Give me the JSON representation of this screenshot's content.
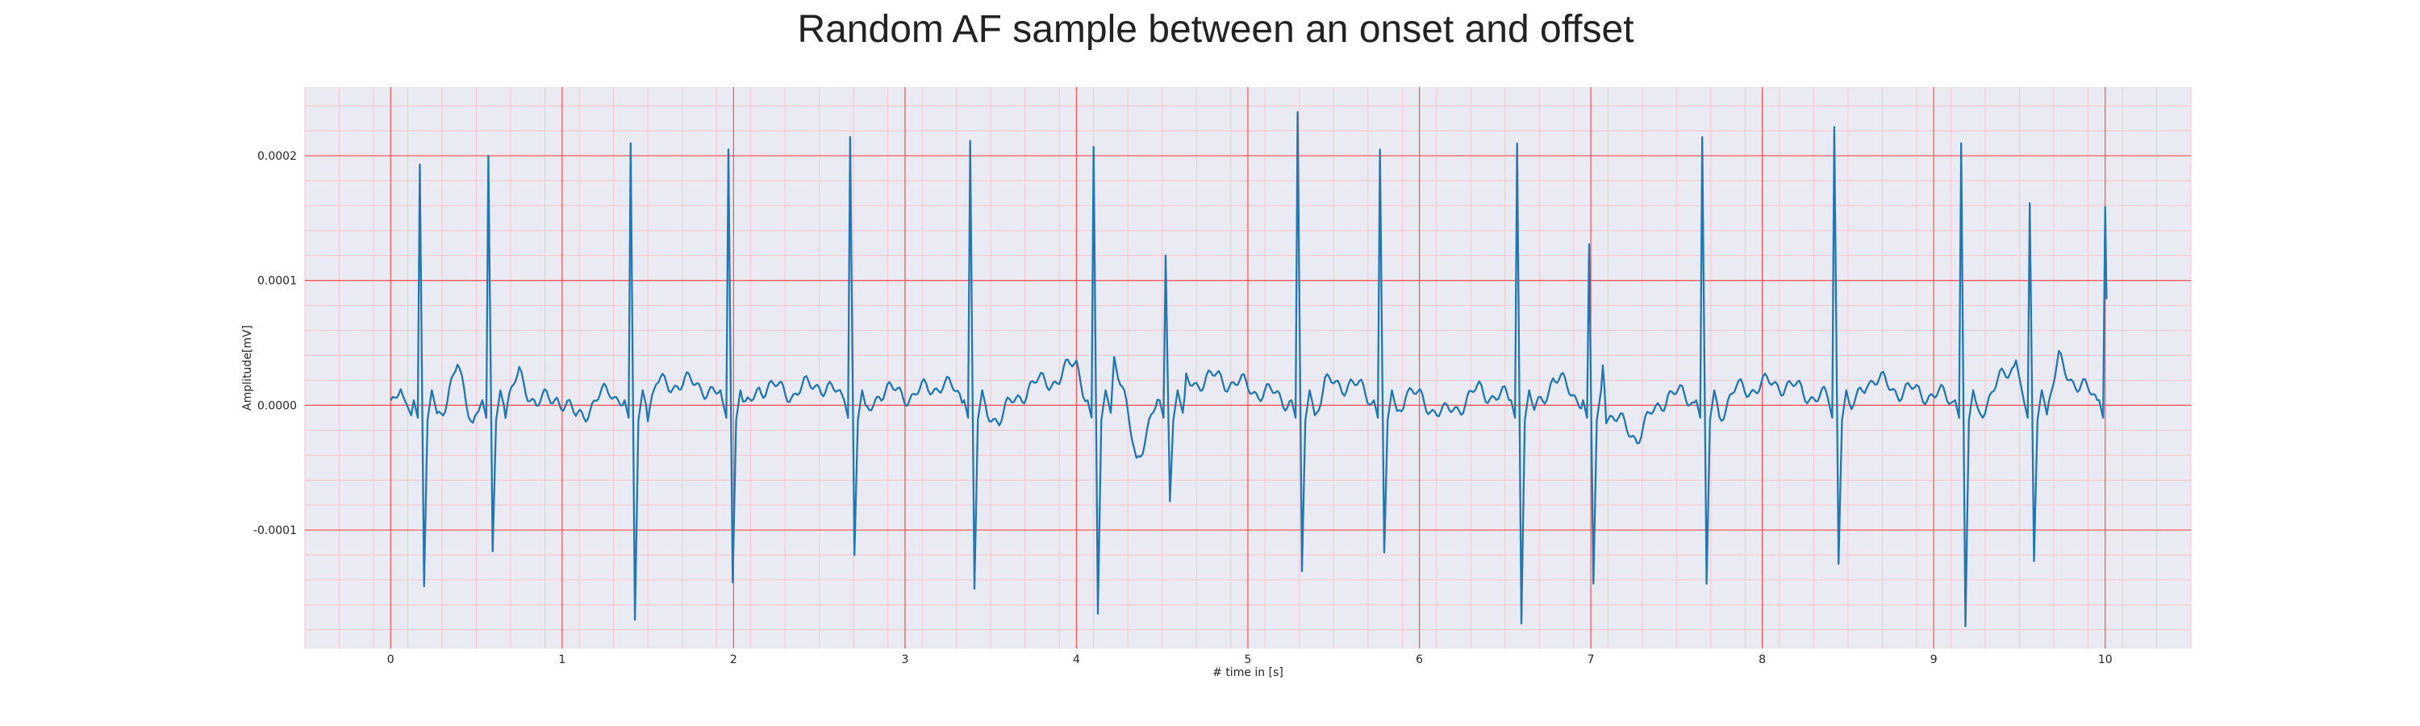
{
  "chart_data": {
    "type": "line",
    "title": "Random AF sample between an onset and offset",
    "xlabel": "# time in [s]",
    "ylabel": "Amplitude[mV]",
    "xlim": [
      -0.5,
      10.5
    ],
    "ylim": [
      -0.000195,
      0.000255
    ],
    "xticks": [
      0,
      1,
      2,
      3,
      4,
      5,
      6,
      7,
      8,
      9,
      10
    ],
    "xtick_labels": [
      "0",
      "1",
      "2",
      "3",
      "4",
      "5",
      "6",
      "7",
      "8",
      "9",
      "10"
    ],
    "yticks": [
      -0.0001,
      0.0,
      0.0001,
      0.0002
    ],
    "ytick_labels": [
      "-0.0001",
      "0.0000",
      "0.0001",
      "0.0002"
    ],
    "grid": "major and minor",
    "colors": {
      "plot_background": "#eaeaf2",
      "major_grid": "#ff4d4d",
      "minor_grid": "#f7c6cc",
      "line": "#1f77b4"
    },
    "series": [
      {
        "color": "#1f77b4",
        "beats": [
          {
            "t": 0.17,
            "peak": 0.000193,
            "trough": -0.000145
          },
          {
            "t": 0.57,
            "peak": 0.0002,
            "trough": -0.000117
          },
          {
            "t": 1.4,
            "peak": 0.00021,
            "trough": -0.000172
          },
          {
            "t": 1.97,
            "peak": 0.000205,
            "trough": -0.000142
          },
          {
            "t": 2.68,
            "peak": 0.000215,
            "trough": -0.00012
          },
          {
            "t": 3.38,
            "peak": 0.000212,
            "trough": -0.000147
          },
          {
            "t": 4.1,
            "peak": 0.000207,
            "trough": -0.000167
          },
          {
            "t": 4.52,
            "peak": 0.00012,
            "trough": -7.7e-05
          },
          {
            "t": 5.29,
            "peak": 0.000235,
            "trough": -0.000133
          },
          {
            "t": 5.77,
            "peak": 0.000205,
            "trough": -0.000118
          },
          {
            "t": 6.57,
            "peak": 0.00021,
            "trough": -0.000175
          },
          {
            "t": 6.99,
            "peak": 0.000129,
            "trough": -0.000143
          },
          {
            "t": 7.65,
            "peak": 0.000215,
            "trough": -0.000143
          },
          {
            "t": 8.42,
            "peak": 0.000223,
            "trough": -0.000127
          },
          {
            "t": 9.16,
            "peak": 0.00021,
            "trough": -0.000177
          },
          {
            "t": 9.56,
            "peak": 0.000162,
            "trough": -0.000125
          },
          {
            "t": 10.0,
            "peak": 0.000159,
            "trough": 8.5e-05
          }
        ],
        "baseline_activity": [
          {
            "t": 0.0,
            "v": 0.0
          },
          {
            "t": 0.07,
            "v": 8e-06
          },
          {
            "t": 0.12,
            "v": -8e-06
          },
          {
            "t": 0.24,
            "v": 1.2e-05
          },
          {
            "t": 0.33,
            "v": 5e-06
          },
          {
            "t": 0.39,
            "v": 3e-05
          },
          {
            "t": 0.48,
            "v": -1.2e-05
          },
          {
            "t": 0.75,
            "v": 2.6e-05
          },
          {
            "t": 0.85,
            "v": 0.0
          },
          {
            "t": 0.97,
            "v": 8e-06
          },
          {
            "t": 1.08,
            "v": -1e-05
          },
          {
            "t": 1.28,
            "v": 1.2e-05
          },
          {
            "t": 1.55,
            "v": 1.6e-05
          },
          {
            "t": 1.67,
            "v": 1.8e-05
          },
          {
            "t": 1.82,
            "v": 1.6e-05
          },
          {
            "t": 2.15,
            "v": 1.6e-05
          },
          {
            "t": 2.35,
            "v": 1e-05
          },
          {
            "t": 2.5,
            "v": 1.8e-05
          },
          {
            "t": 2.85,
            "v": 1.2e-05
          },
          {
            "t": 3.05,
            "v": 8e-06
          },
          {
            "t": 3.22,
            "v": 1.8e-05
          },
          {
            "t": 3.55,
            "v": -1e-05
          },
          {
            "t": 3.72,
            "v": 1.5e-05
          },
          {
            "t": 3.9,
            "v": 2.2e-05
          },
          {
            "t": 4.0,
            "v": 3.5e-05
          },
          {
            "t": 4.22,
            "v": 4e-05
          },
          {
            "t": 4.35,
            "v": -4.2e-05
          },
          {
            "t": 4.64,
            "v": 1.8e-05
          },
          {
            "t": 4.83,
            "v": 2.2e-05
          },
          {
            "t": 5.05,
            "v": 1.2e-05
          },
          {
            "t": 5.45,
            "v": 1.6e-05
          },
          {
            "t": 5.6,
            "v": 1.8e-05
          },
          {
            "t": 5.92,
            "v": 1.2e-05
          },
          {
            "t": 6.15,
            "v": -8e-06
          },
          {
            "t": 6.35,
            "v": 1.2e-05
          },
          {
            "t": 6.78,
            "v": 2.2e-05
          },
          {
            "t": 7.07,
            "v": 3.2e-05
          },
          {
            "t": 7.27,
            "v": -2.5e-05
          },
          {
            "t": 7.45,
            "v": 1e-05
          },
          {
            "t": 7.85,
            "v": 1.2e-05
          },
          {
            "t": 8.1,
            "v": 1.8e-05
          },
          {
            "t": 8.25,
            "v": 1e-05
          },
          {
            "t": 8.61,
            "v": 2.2e-05
          },
          {
            "t": 8.8,
            "v": 1.2e-05
          },
          {
            "t": 8.95,
            "v": 1e-05
          },
          {
            "t": 9.35,
            "v": 1.2e-05
          },
          {
            "t": 9.48,
            "v": 3.6e-05
          },
          {
            "t": 9.73,
            "v": 3.5e-05
          },
          {
            "t": 9.85,
            "v": 1.5e-05
          }
        ]
      }
    ]
  }
}
